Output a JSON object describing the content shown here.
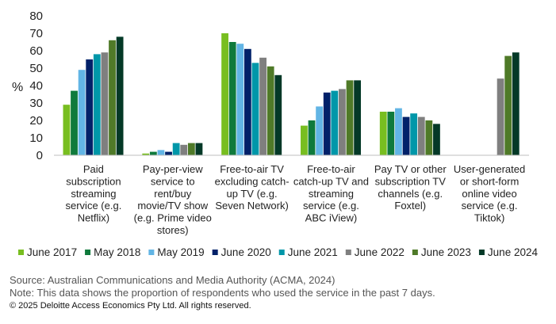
{
  "chart_data": {
    "type": "bar",
    "ylabel": "%",
    "ylim": [
      0,
      80
    ],
    "yticks": [
      0,
      10,
      20,
      30,
      40,
      50,
      60,
      70,
      80
    ],
    "grid": false,
    "legend_position": "bottom",
    "categories": [
      "Paid subscription streaming service (e.g. Netflix)",
      "Pay-per-view service to rent/buy movie/TV show (e.g. Prime video stores)",
      "Free-to-air TV excluding catch-up TV (e.g. Seven Network)",
      "Free-to-air catch-up TV and streaming service (e.g. ABC iView)",
      "Pay TV or other subscription TV channels (e.g. Foxtel)",
      "User-generated or short-form online video service (e.g. Tiktok)"
    ],
    "category_lines": [
      [
        "Paid",
        "subscription",
        "streaming",
        "service (e.g.",
        "Netflix)"
      ],
      [
        "Pay-per-view",
        "service to",
        "rent/buy",
        "movie/TV show",
        "(e.g. Prime video",
        "stores)"
      ],
      [
        "Free-to-air TV",
        "excluding catch-",
        "up TV (e.g.",
        "Seven Network)"
      ],
      [
        "Free-to-air",
        "catch-up TV and",
        "streaming",
        "service (e.g.",
        "ABC iView)"
      ],
      [
        "Pay TV or other",
        "subscription TV",
        "channels (e.g.",
        "Foxtel)"
      ],
      [
        "User-generated",
        "or short-form",
        "online video",
        "service (e.g.",
        "Tiktok)"
      ]
    ],
    "series": [
      {
        "name": "June 2017",
        "color": "#78be20",
        "values": [
          29,
          1,
          70,
          17,
          25,
          null
        ]
      },
      {
        "name": "May 2018",
        "color": "#0f7a3c",
        "values": [
          37,
          2,
          65,
          20,
          25,
          null
        ]
      },
      {
        "name": "May 2019",
        "color": "#62b5e5",
        "values": [
          49,
          3,
          64,
          28,
          27,
          null
        ]
      },
      {
        "name": "June 2020",
        "color": "#012169",
        "values": [
          55,
          2,
          61,
          36,
          22,
          null
        ]
      },
      {
        "name": "June 2021",
        "color": "#0097a9",
        "values": [
          58,
          7,
          53,
          37,
          24,
          null
        ]
      },
      {
        "name": "June 2022",
        "color": "#7f7f7f",
        "values": [
          59,
          6,
          56,
          38,
          22,
          44
        ]
      },
      {
        "name": "June 2023",
        "color": "#4f7a28",
        "values": [
          66,
          7,
          51,
          43,
          20,
          57
        ]
      },
      {
        "name": "June 2024",
        "color": "#043927",
        "values": [
          68,
          7,
          46,
          43,
          18,
          59
        ]
      }
    ]
  },
  "footer": {
    "source": "Source: Australian Communications and Media Authority (ACMA, 2024)",
    "note": "Note: This data shows the proportion of respondents who used the service in the past 7 days.",
    "copyright": "© 2025 Deloitte Access Economics Pty Ltd. All rights reserved."
  }
}
